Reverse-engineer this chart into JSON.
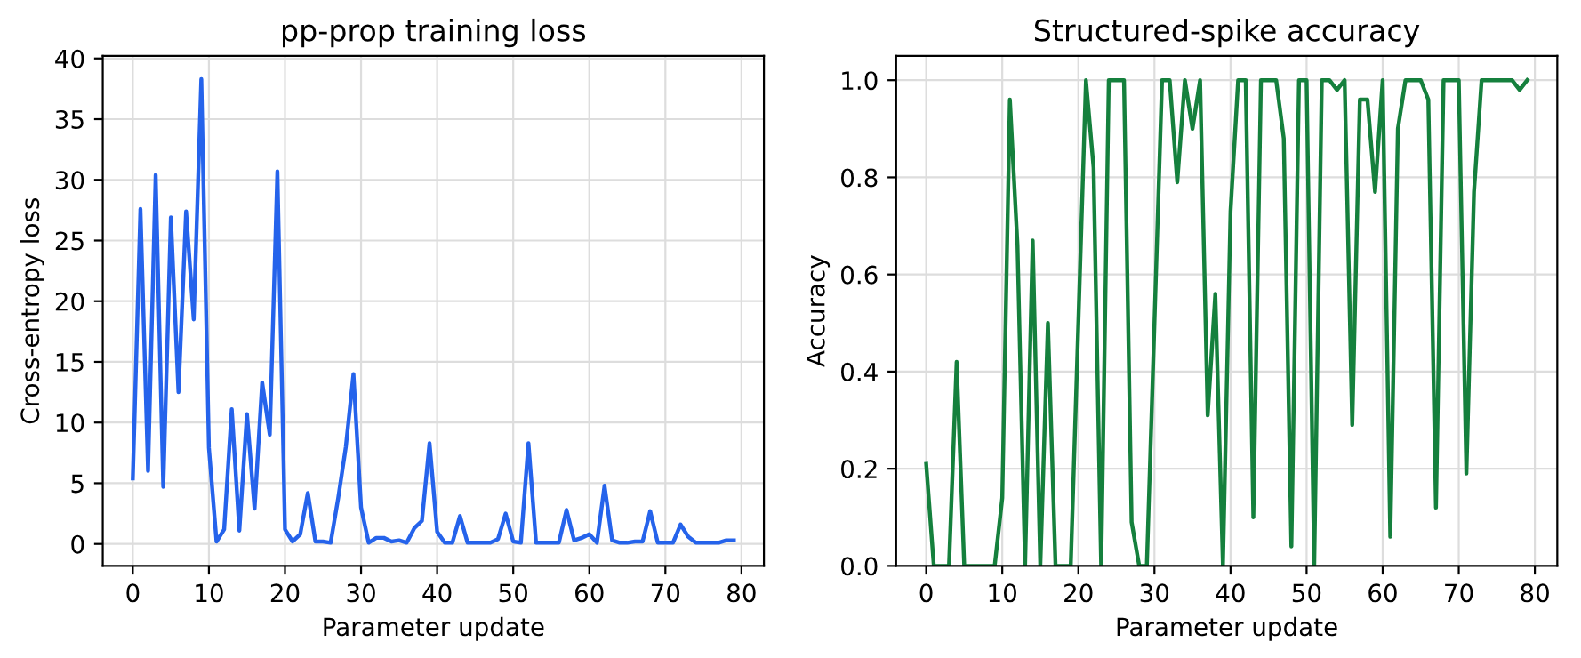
{
  "chart_data": [
    {
      "type": "line",
      "title": "pp-prop training loss",
      "xlabel": "Parameter update",
      "ylabel": "Cross-entropy loss",
      "x": [
        0,
        1,
        2,
        3,
        4,
        5,
        6,
        7,
        8,
        9,
        10,
        11,
        12,
        13,
        14,
        15,
        16,
        17,
        18,
        19,
        20,
        21,
        22,
        23,
        24,
        25,
        26,
        27,
        28,
        29,
        30,
        31,
        32,
        33,
        34,
        35,
        36,
        37,
        38,
        39,
        40,
        41,
        42,
        43,
        44,
        45,
        46,
        47,
        48,
        49,
        50,
        51,
        52,
        53,
        54,
        55,
        56,
        57,
        58,
        59,
        60,
        61,
        62,
        63,
        64,
        65,
        66,
        67,
        68,
        69,
        70,
        71,
        72,
        73,
        74,
        75,
        76,
        77,
        78,
        79
      ],
      "series": [
        {
          "color": "#2563eb",
          "values": [
            5.4,
            27.6,
            6.0,
            30.4,
            4.7,
            26.9,
            12.5,
            27.4,
            18.5,
            38.3,
            7.9,
            0.2,
            1.2,
            11.1,
            1.1,
            10.7,
            2.9,
            13.3,
            9.0,
            30.7,
            1.2,
            0.2,
            0.8,
            4.2,
            0.2,
            0.2,
            0.1,
            3.8,
            8.0,
            14.0,
            3.0,
            0.1,
            0.5,
            0.5,
            0.2,
            0.3,
            0.1,
            1.3,
            1.9,
            8.3,
            1.0,
            0.1,
            0.1,
            2.3,
            0.1,
            0.1,
            0.1,
            0.1,
            0.4,
            2.5,
            0.2,
            0.1,
            8.3,
            0.1,
            0.1,
            0.1,
            0.1,
            2.8,
            0.3,
            0.5,
            0.8,
            0.1,
            4.8,
            0.3,
            0.1,
            0.1,
            0.2,
            0.2,
            2.7,
            0.1,
            0.1,
            0.1,
            1.6,
            0.6,
            0.1,
            0.1,
            0.1,
            0.1,
            0.3,
            0.3
          ]
        }
      ],
      "xlim": [
        -3.95,
        82.95
      ],
      "ylim": [
        -1.81,
        40.21
      ],
      "xticks": [
        0,
        10,
        20,
        30,
        40,
        50,
        60,
        70,
        80
      ],
      "yticks": [
        0,
        5,
        10,
        15,
        20,
        25,
        30,
        35,
        40
      ],
      "grid": true,
      "marker": "none",
      "line_style": "solid"
    },
    {
      "type": "line",
      "title": "Structured-spike accuracy",
      "xlabel": "Parameter update",
      "ylabel": "Accuracy",
      "x": [
        0,
        1,
        2,
        3,
        4,
        5,
        6,
        7,
        8,
        9,
        10,
        11,
        12,
        13,
        14,
        15,
        16,
        17,
        18,
        19,
        20,
        21,
        22,
        23,
        24,
        25,
        26,
        27,
        28,
        29,
        30,
        31,
        32,
        33,
        34,
        35,
        36,
        37,
        38,
        39,
        40,
        41,
        42,
        43,
        44,
        45,
        46,
        47,
        48,
        49,
        50,
        51,
        52,
        53,
        54,
        55,
        56,
        57,
        58,
        59,
        60,
        61,
        62,
        63,
        64,
        65,
        66,
        67,
        68,
        69,
        70,
        71,
        72,
        73,
        74,
        75,
        76,
        77,
        78,
        79
      ],
      "series": [
        {
          "color": "#15803d",
          "values": [
            0.21,
            0,
            0,
            0,
            0.42,
            0,
            0,
            0,
            0,
            0,
            0.14,
            0.96,
            0.66,
            0,
            0.67,
            0,
            0.5,
            0,
            0,
            0,
            0.5,
            1.0,
            0.82,
            0,
            1.0,
            1.0,
            1.0,
            0.09,
            0,
            0,
            0.5,
            1.0,
            1.0,
            0.79,
            1.0,
            0.9,
            1.0,
            0.31,
            0.56,
            0,
            0.73,
            1.0,
            1.0,
            0.1,
            1.0,
            1.0,
            1.0,
            0.88,
            0.04,
            1.0,
            1.0,
            0,
            1.0,
            1.0,
            0.98,
            1.0,
            0.29,
            0.96,
            0.96,
            0.77,
            1.0,
            0.06,
            0.9,
            1.0,
            1.0,
            1.0,
            0.96,
            0.12,
            1.0,
            1.0,
            1.0,
            0.19,
            0.77,
            1.0,
            1.0,
            1.0,
            1.0,
            1.0,
            0.98,
            1.0
          ]
        }
      ],
      "xlim": [
        -3.95,
        82.95
      ],
      "ylim": [
        0,
        1.05
      ],
      "xticks": [
        0,
        10,
        20,
        30,
        40,
        50,
        60,
        70,
        80
      ],
      "yticks": [
        {
          "value": 0,
          "label": "0.0"
        },
        {
          "value": 0.2,
          "label": "0.2"
        },
        {
          "value": 0.4,
          "label": "0.4"
        },
        {
          "value": 0.6,
          "label": "0.6"
        },
        {
          "value": 0.8,
          "label": "0.8"
        },
        {
          "value": 1.0,
          "label": "1.0"
        }
      ],
      "grid": true,
      "marker": "none",
      "line_style": "solid"
    }
  ]
}
